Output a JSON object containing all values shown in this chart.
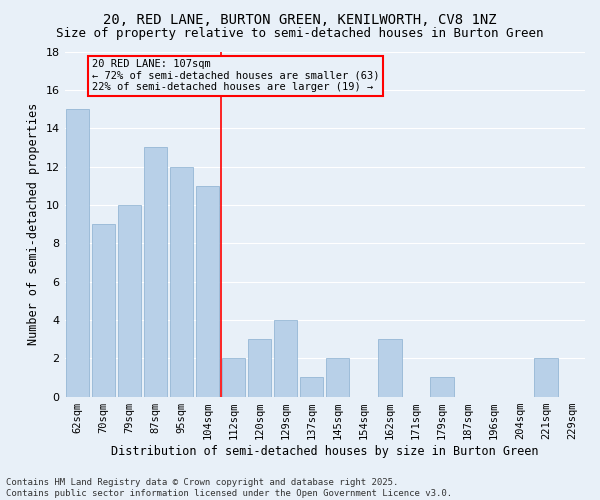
{
  "title": "20, RED LANE, BURTON GREEN, KENILWORTH, CV8 1NZ",
  "subtitle": "Size of property relative to semi-detached houses in Burton Green",
  "xlabel": "Distribution of semi-detached houses by size in Burton Green",
  "ylabel": "Number of semi-detached properties",
  "categories": [
    "62sqm",
    "70sqm",
    "79sqm",
    "87sqm",
    "95sqm",
    "104sqm",
    "112sqm",
    "120sqm",
    "129sqm",
    "137sqm",
    "145sqm",
    "154sqm",
    "162sqm",
    "171sqm",
    "179sqm",
    "187sqm",
    "196sqm",
    "204sqm",
    "221sqm",
    "229sqm"
  ],
  "values": [
    15,
    9,
    10,
    13,
    12,
    11,
    2,
    3,
    4,
    1,
    2,
    0,
    3,
    0,
    1,
    0,
    0,
    0,
    2,
    0
  ],
  "bar_color": "#b8d0e8",
  "bar_edge_color": "#8aafd0",
  "vline_x": 5.5,
  "vline_color": "red",
  "annotation_text": "20 RED LANE: 107sqm\n← 72% of semi-detached houses are smaller (63)\n22% of semi-detached houses are larger (19) →",
  "annotation_box_color": "red",
  "ylim": [
    0,
    18
  ],
  "yticks": [
    0,
    2,
    4,
    6,
    8,
    10,
    12,
    14,
    16,
    18
  ],
  "background_color": "#e8f0f8",
  "grid_color": "#ffffff",
  "footer": "Contains HM Land Registry data © Crown copyright and database right 2025.\nContains public sector information licensed under the Open Government Licence v3.0.",
  "title_fontsize": 10,
  "subtitle_fontsize": 9,
  "xlabel_fontsize": 8.5,
  "ylabel_fontsize": 8.5,
  "footer_fontsize": 6.5,
  "tick_fontsize": 7.5,
  "ytick_fontsize": 8,
  "ann_fontsize": 7.5
}
